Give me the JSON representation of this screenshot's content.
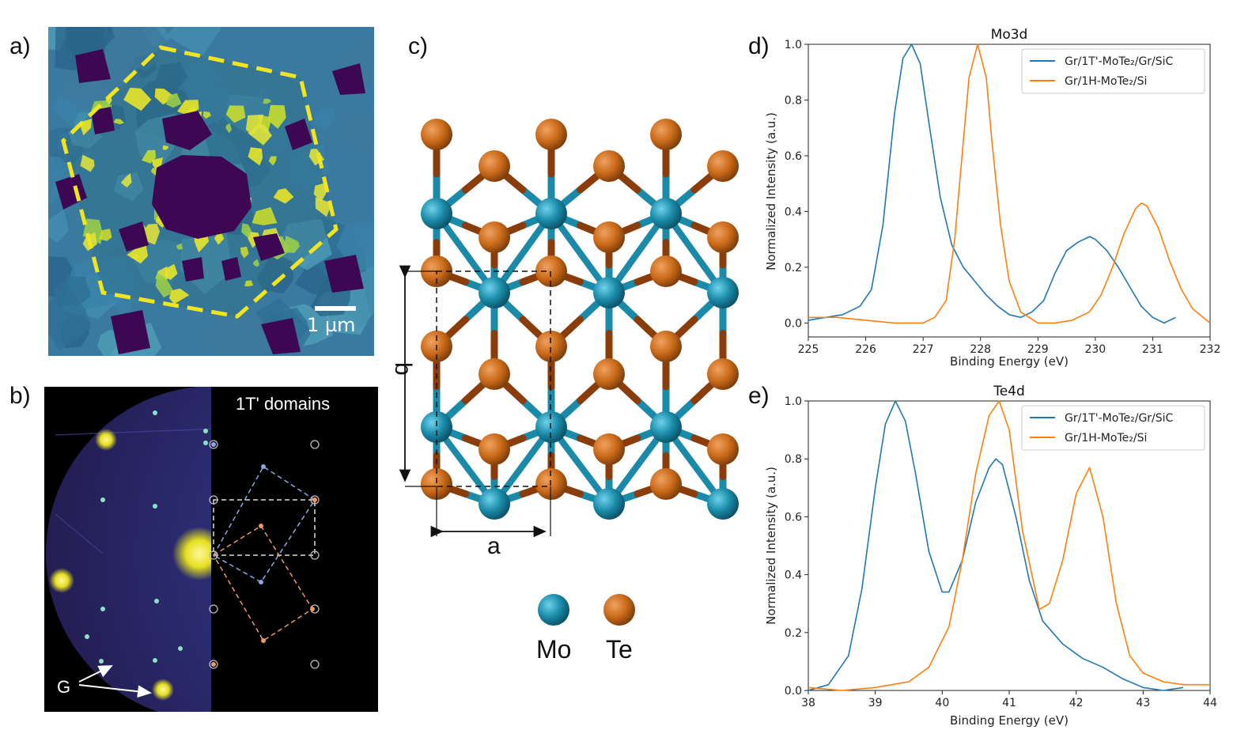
{
  "panel_labels": [
    "a)",
    "b)",
    "c)",
    "d)",
    "e)"
  ],
  "panel_a": {
    "scale_bar_label": "1 µm",
    "outline_color": "#f2e51d"
  },
  "panel_b": {
    "domains_label": "1T' domains",
    "marker_label": "G"
  },
  "panel_c": {
    "lattice_a": "a",
    "lattice_b": "b",
    "legend": [
      {
        "label": "Mo",
        "color": "#1a8aa8"
      },
      {
        "label": "Te",
        "color": "#c96a1a"
      }
    ]
  },
  "chart_data": [
    {
      "type": "line",
      "title": "Mo3d",
      "xlabel": "Binding Energy (eV)",
      "ylabel": "Normalized Intensity (a.u.)",
      "xlim": [
        225,
        232
      ],
      "ylim": [
        -0.05,
        1.0
      ],
      "xticks": [
        "225",
        "226",
        "227",
        "228",
        "229",
        "230",
        "231",
        "232"
      ],
      "yticks": [
        "0.0",
        "0.2",
        "0.4",
        "0.6",
        "0.8",
        "1.0"
      ],
      "legend_position": "top-right",
      "series": [
        {
          "name": "Gr/1T'-MoTe₂/Gr/SiC",
          "color": "#1f77b4",
          "x": [
            225.0,
            225.3,
            225.6,
            225.9,
            226.1,
            226.3,
            226.5,
            226.65,
            226.8,
            226.95,
            227.1,
            227.3,
            227.5,
            227.7,
            227.9,
            228.1,
            228.3,
            228.5,
            228.7,
            228.9,
            229.1,
            229.3,
            229.5,
            229.7,
            229.9,
            230.0,
            230.2,
            230.4,
            230.6,
            230.8,
            231.0,
            231.2,
            231.4
          ],
          "y": [
            0.01,
            0.02,
            0.03,
            0.06,
            0.12,
            0.35,
            0.75,
            0.95,
            1.0,
            0.93,
            0.72,
            0.45,
            0.28,
            0.2,
            0.15,
            0.1,
            0.06,
            0.03,
            0.02,
            0.04,
            0.08,
            0.18,
            0.26,
            0.29,
            0.31,
            0.3,
            0.26,
            0.2,
            0.13,
            0.06,
            0.02,
            0.0,
            0.02
          ]
        },
        {
          "name": "Gr/1H-MoTe₂/Si",
          "color": "#ff7f0e",
          "x": [
            225.0,
            225.5,
            226.0,
            226.5,
            227.0,
            227.2,
            227.4,
            227.55,
            227.7,
            227.8,
            227.95,
            228.1,
            228.2,
            228.35,
            228.5,
            228.7,
            229.0,
            229.3,
            229.6,
            229.9,
            230.1,
            230.3,
            230.5,
            230.7,
            230.8,
            230.9,
            231.1,
            231.3,
            231.5,
            231.7,
            232.0
          ],
          "y": [
            0.02,
            0.02,
            0.01,
            0.0,
            0.0,
            0.02,
            0.08,
            0.3,
            0.65,
            0.88,
            1.0,
            0.88,
            0.65,
            0.35,
            0.15,
            0.04,
            0.0,
            0.0,
            0.01,
            0.04,
            0.1,
            0.2,
            0.32,
            0.41,
            0.43,
            0.42,
            0.34,
            0.22,
            0.12,
            0.05,
            0.0
          ]
        }
      ]
    },
    {
      "type": "line",
      "title": "Te4d",
      "xlabel": "Binding Energy (eV)",
      "ylabel": "Normalized Intensity (a.u.)",
      "xlim": [
        38,
        44
      ],
      "ylim": [
        0.0,
        1.0
      ],
      "xticks": [
        "38",
        "39",
        "40",
        "41",
        "42",
        "43",
        "44"
      ],
      "yticks": [
        "0.0",
        "0.2",
        "0.4",
        "0.6",
        "0.8",
        "1.0"
      ],
      "legend_position": "top-right",
      "series": [
        {
          "name": "Gr/1T'-MoTe₂/Gr/SiC",
          "color": "#1f77b4",
          "x": [
            38.0,
            38.3,
            38.6,
            38.8,
            39.0,
            39.15,
            39.3,
            39.45,
            39.6,
            39.8,
            40.0,
            40.1,
            40.3,
            40.5,
            40.7,
            40.8,
            40.9,
            41.1,
            41.3,
            41.5,
            41.8,
            42.1,
            42.4,
            42.7,
            43.0,
            43.3,
            43.6
          ],
          "y": [
            0.0,
            0.02,
            0.12,
            0.35,
            0.7,
            0.92,
            1.0,
            0.93,
            0.75,
            0.48,
            0.34,
            0.34,
            0.45,
            0.65,
            0.77,
            0.8,
            0.78,
            0.6,
            0.38,
            0.24,
            0.16,
            0.11,
            0.08,
            0.04,
            0.01,
            0.0,
            0.01
          ]
        },
        {
          "name": "Gr/1H-MoTe₂/Si",
          "color": "#ff7f0e",
          "x": [
            38.0,
            38.5,
            39.0,
            39.5,
            39.8,
            40.1,
            40.3,
            40.5,
            40.7,
            40.85,
            41.0,
            41.2,
            41.45,
            41.6,
            41.8,
            42.0,
            42.2,
            42.4,
            42.6,
            42.8,
            43.0,
            43.3,
            43.6,
            44.0
          ],
          "y": [
            0.01,
            0.0,
            0.01,
            0.03,
            0.08,
            0.22,
            0.45,
            0.75,
            0.95,
            1.0,
            0.9,
            0.55,
            0.28,
            0.3,
            0.45,
            0.68,
            0.77,
            0.6,
            0.3,
            0.12,
            0.06,
            0.03,
            0.02,
            0.02
          ]
        }
      ]
    }
  ]
}
